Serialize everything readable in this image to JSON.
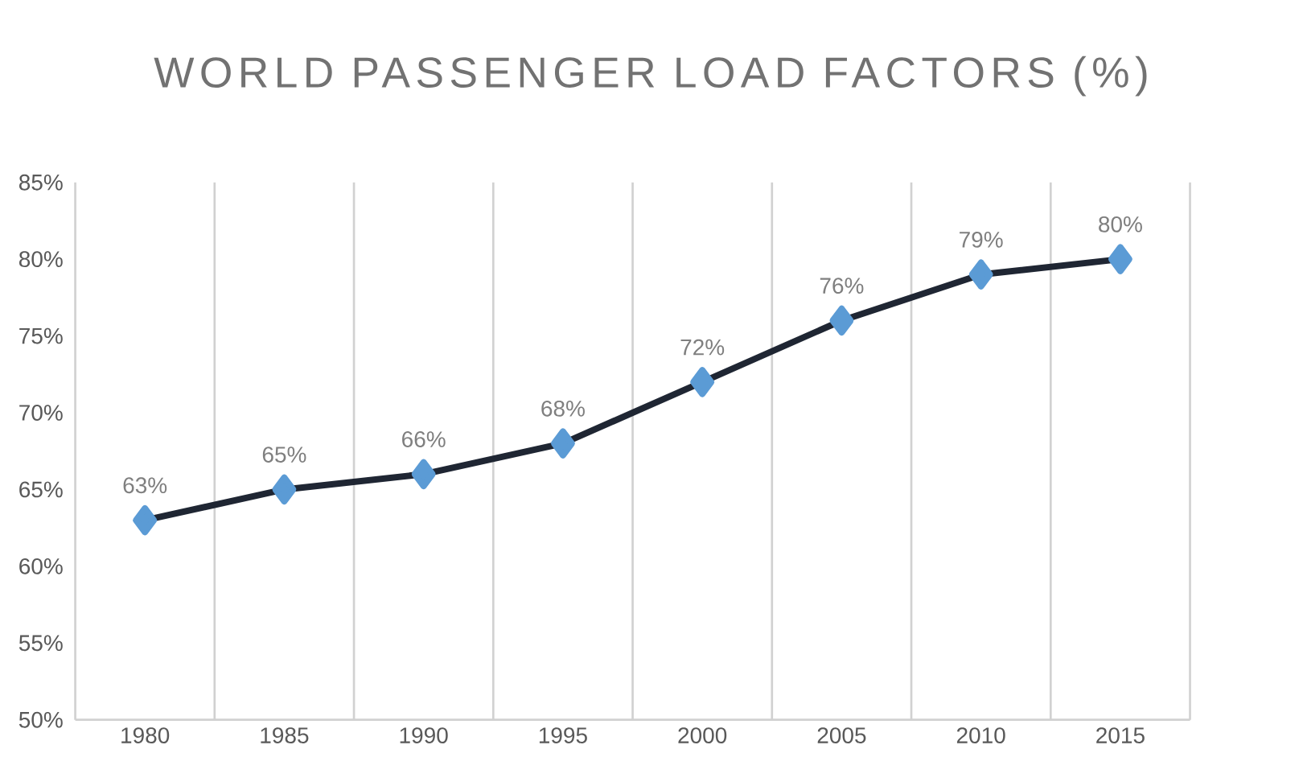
{
  "chart_data": {
    "type": "line",
    "title": "WORLD PASSENGER LOAD FACTORS (%)",
    "categories": [
      "1980",
      "1985",
      "1990",
      "1995",
      "2000",
      "2005",
      "2010",
      "2015"
    ],
    "series": [
      {
        "color": "#1f2633",
        "values": [
          63,
          65,
          66,
          68,
          72,
          76,
          79,
          80
        ],
        "value_labels": [
          "63%",
          "65%",
          "66%",
          "68%",
          "72%",
          "76%",
          "79%",
          "80%"
        ]
      }
    ],
    "ylim": [
      50,
      85
    ],
    "yticks": [
      {
        "value": 50,
        "label": "50%"
      },
      {
        "value": 55,
        "label": "55%"
      },
      {
        "value": 60,
        "label": "60%"
      },
      {
        "value": 65,
        "label": "65%"
      },
      {
        "value": 70,
        "label": "70%"
      },
      {
        "value": 75,
        "label": "75%"
      },
      {
        "value": 80,
        "label": "80%"
      },
      {
        "value": 85,
        "label": "85%"
      }
    ],
    "grid": "x",
    "marker": "diamond",
    "line_style": "solid"
  }
}
